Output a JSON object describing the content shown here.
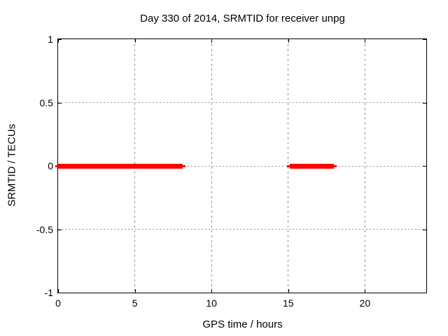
{
  "figure": {
    "title": "Day 330 of 2014, SRMTID for receiver unpg",
    "xlabel": "GPS time / hours",
    "ylabel": "SRMTID / TECUs"
  },
  "colors": {
    "series": "#ff0000",
    "grid": "#909090",
    "border": "#000000",
    "background": "#ffffff",
    "text": "#000000"
  },
  "chart_data": {
    "type": "line",
    "title": "Day 330 of 2014, SRMTID for receiver unpg",
    "xlabel": "GPS time / hours",
    "ylabel": "SRMTID / TECUs",
    "xlim": [
      0,
      24
    ],
    "ylim": [
      -1,
      1
    ],
    "x_ticks": [
      0,
      5,
      10,
      15,
      20
    ],
    "x_tick_labels": [
      "0",
      "5",
      "10",
      "15",
      "20"
    ],
    "y_ticks": [
      1,
      0.5,
      0,
      -0.5,
      -1
    ],
    "y_tick_labels": [
      "1",
      "0.5",
      "0",
      "-0.5",
      "-1"
    ],
    "grid": true,
    "legend": "none",
    "series": [
      {
        "name": "SRMTID",
        "color": "#ff0000",
        "style": "thick-horizontal-segments",
        "segments": [
          {
            "y": 0,
            "x_start": 0.0,
            "x_end": 8.1
          },
          {
            "y": 0,
            "x_start": 15.1,
            "x_end": 18.0
          }
        ]
      }
    ]
  }
}
